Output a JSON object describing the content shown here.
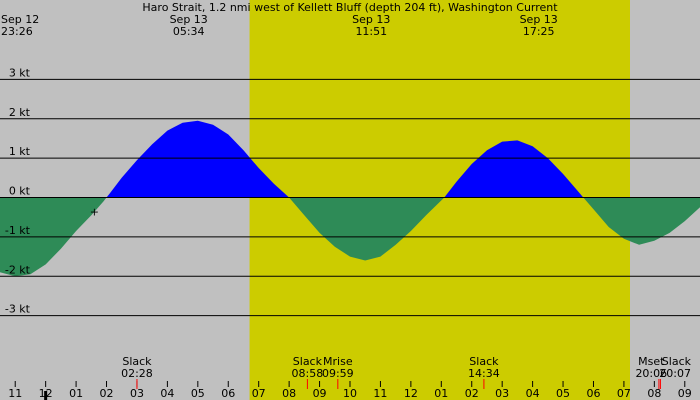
{
  "colors": {
    "night": "#c0c0c0",
    "day": "#cccc00",
    "flood": "#0000ff",
    "ebb": "#2e8b57",
    "grid": "#000000",
    "moon_tick": "#ff0000"
  },
  "chart_data": {
    "type": "area",
    "title": "Haro Strait, 1.2 nmi west of Kellett Bluff (depth 204 ft), Washington Current",
    "ylabel": "",
    "y_unit": "kt",
    "ylim": [
      -4,
      4
    ],
    "y_ticks": [
      3,
      2,
      1,
      0,
      -1,
      -2,
      -3
    ],
    "y_tick_labels": [
      "3 kt",
      "2 kt",
      "1 kt",
      "0 kt",
      "-1 kt",
      "-2 kt",
      "-3 kt"
    ],
    "x_unit": "hours",
    "x_range": [
      -13.5,
      9.5
    ],
    "x_ticks": [
      {
        "h": -13,
        "label": "11"
      },
      {
        "h": -12,
        "label": "12"
      },
      {
        "h": -11,
        "label": "01"
      },
      {
        "h": -10,
        "label": "02"
      },
      {
        "h": -9,
        "label": "03"
      },
      {
        "h": -8,
        "label": "04"
      },
      {
        "h": -7,
        "label": "05"
      },
      {
        "h": -6,
        "label": "06"
      },
      {
        "h": -5,
        "label": "07"
      },
      {
        "h": -4,
        "label": "08"
      },
      {
        "h": -3,
        "label": "09"
      },
      {
        "h": -2,
        "label": "10"
      },
      {
        "h": -1,
        "label": "11"
      },
      {
        "h": 0,
        "label": "12"
      },
      {
        "h": 1,
        "label": "01"
      },
      {
        "h": 2,
        "label": "02"
      },
      {
        "h": 3,
        "label": "03"
      },
      {
        "h": 4,
        "label": "04"
      },
      {
        "h": 5,
        "label": "05"
      },
      {
        "h": 6,
        "label": "06"
      },
      {
        "h": 7,
        "label": "07"
      },
      {
        "h": 8,
        "label": "08"
      },
      {
        "h": 9,
        "label": "09"
      }
    ],
    "day_spans": [
      [
        -5.3,
        7.2
      ]
    ],
    "series": [
      {
        "points": [
          [
            -13.5,
            -1.9
          ],
          [
            -13.0,
            -2.0
          ],
          [
            -12.5,
            -1.95
          ],
          [
            -12.0,
            -1.7
          ],
          [
            -11.5,
            -1.3
          ],
          [
            -11.0,
            -0.85
          ],
          [
            -10.5,
            -0.45
          ],
          [
            -10.1,
            -0.1
          ],
          [
            -9.9,
            0.1
          ],
          [
            -9.5,
            0.5
          ],
          [
            -9.0,
            0.95
          ],
          [
            -8.5,
            1.35
          ],
          [
            -8.0,
            1.7
          ],
          [
            -7.5,
            1.9
          ],
          [
            -7.0,
            1.95
          ],
          [
            -6.5,
            1.85
          ],
          [
            -6.0,
            1.6
          ],
          [
            -5.5,
            1.2
          ],
          [
            -5.0,
            0.75
          ],
          [
            -4.5,
            0.35
          ],
          [
            -4.0,
            0.0
          ],
          [
            -3.5,
            -0.45
          ],
          [
            -3.0,
            -0.9
          ],
          [
            -2.5,
            -1.25
          ],
          [
            -2.0,
            -1.5
          ],
          [
            -1.5,
            -1.6
          ],
          [
            -1.0,
            -1.5
          ],
          [
            -0.5,
            -1.2
          ],
          [
            0.0,
            -0.85
          ],
          [
            0.5,
            -0.45
          ],
          [
            1.1,
            0.0
          ],
          [
            1.5,
            0.4
          ],
          [
            2.0,
            0.85
          ],
          [
            2.5,
            1.2
          ],
          [
            3.0,
            1.42
          ],
          [
            3.5,
            1.45
          ],
          [
            4.0,
            1.3
          ],
          [
            4.5,
            1.0
          ],
          [
            5.0,
            0.6
          ],
          [
            5.5,
            0.15
          ],
          [
            6.0,
            -0.3
          ],
          [
            6.5,
            -0.75
          ],
          [
            7.0,
            -1.05
          ],
          [
            7.5,
            -1.2
          ],
          [
            8.0,
            -1.1
          ],
          [
            8.5,
            -0.9
          ],
          [
            9.0,
            -0.6
          ],
          [
            9.5,
            -0.25
          ]
        ]
      }
    ],
    "top_labels": [
      {
        "h": -13.5,
        "anchor": "start",
        "line1": "Sep 12",
        "line2": "23:26"
      },
      {
        "h": -7.3,
        "anchor": "middle",
        "line1": "Sep 13",
        "line2": "05:34"
      },
      {
        "h": -1.3,
        "anchor": "middle",
        "line1": "Sep 13",
        "line2": "11:51"
      },
      {
        "h": 4.2,
        "anchor": "middle",
        "line1": "Sep 13",
        "line2": "17:25"
      }
    ],
    "bottom_labels": [
      {
        "h": -9.0,
        "anchor": "middle",
        "line1": "Slack",
        "line2": "02:28"
      },
      {
        "h": -3.4,
        "anchor": "middle",
        "line1": "Slack",
        "line2": "08:58"
      },
      {
        "h": -2.4,
        "anchor": "middle",
        "line1": "Mrise",
        "line2": "09:59"
      },
      {
        "h": 2.4,
        "anchor": "middle",
        "line1": "Slack",
        "line2": "14:34"
      },
      {
        "h": 7.9,
        "anchor": "middle",
        "line1": "Mset",
        "line2": "20:06"
      },
      {
        "h": 9.3,
        "anchor": "end",
        "line1": "Slack",
        "line2": "20:07"
      }
    ],
    "red_ticks": [
      -9.0,
      -3.4,
      -2.4,
      2.4,
      8.15,
      8.2
    ],
    "marker_symbol": "+",
    "marker": {
      "h": -10.4,
      "v": -0.35
    }
  }
}
